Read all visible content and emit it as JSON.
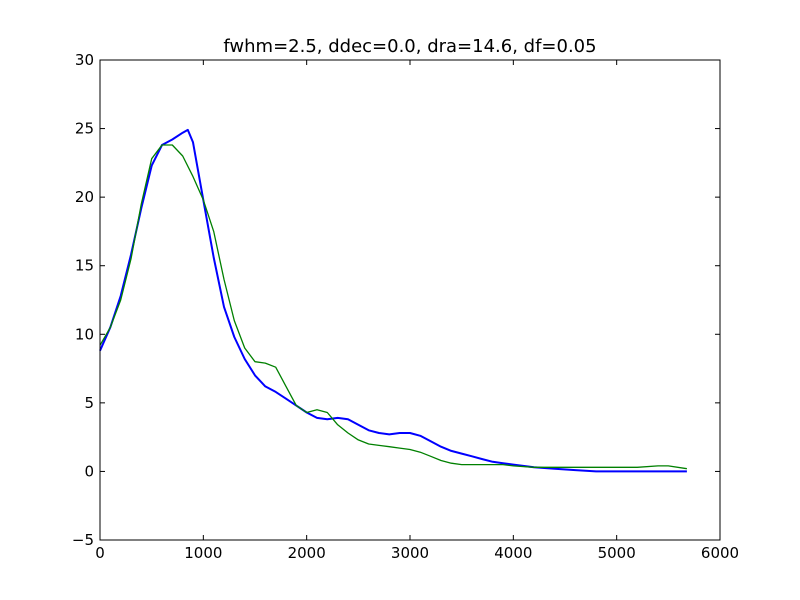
{
  "chart_data": {
    "type": "line",
    "title": "fwhm=2.5, ddec=0.0, dra=14.6, df=0.05",
    "xlabel": "",
    "ylabel": "",
    "xlim": [
      0,
      6000
    ],
    "ylim": [
      -5,
      30
    ],
    "xticks": [
      0,
      1000,
      2000,
      3000,
      4000,
      5000,
      6000
    ],
    "yticks": [
      -5,
      0,
      5,
      10,
      15,
      20,
      25,
      30
    ],
    "grid": false,
    "colors": {
      "data": "#0000ff",
      "model": "#008000"
    },
    "series": [
      {
        "x": [
          0,
          100,
          200,
          300,
          400,
          500,
          600,
          700,
          800,
          850,
          900,
          1000,
          1100,
          1200,
          1300,
          1400,
          1500,
          1600,
          1700,
          1800,
          1900,
          2000,
          2100,
          2200,
          2300,
          2400,
          2500,
          2600,
          2700,
          2800,
          2900,
          3000,
          3100,
          3200,
          3300,
          3400,
          3500,
          3600,
          3700,
          3800,
          3900,
          4000,
          4200,
          4400,
          4600,
          4800,
          5000,
          5200,
          5400,
          5680
        ],
        "y": [
          8.8,
          10.5,
          12.8,
          15.8,
          19.2,
          22.3,
          23.8,
          24.2,
          24.7,
          24.9,
          24.0,
          19.8,
          15.6,
          12.0,
          9.8,
          8.2,
          7.0,
          6.2,
          5.8,
          5.3,
          4.8,
          4.3,
          3.9,
          3.8,
          3.9,
          3.8,
          3.4,
          3.0,
          2.8,
          2.7,
          2.8,
          2.8,
          2.6,
          2.2,
          1.8,
          1.5,
          1.3,
          1.1,
          0.9,
          0.7,
          0.6,
          0.5,
          0.3,
          0.2,
          0.1,
          0.0,
          0.0,
          0.0,
          0.0,
          0.0
        ]
      },
      {
        "x": [
          0,
          100,
          200,
          300,
          400,
          500,
          600,
          700,
          800,
          900,
          1000,
          1100,
          1200,
          1300,
          1400,
          1500,
          1600,
          1700,
          1800,
          1900,
          2000,
          2100,
          2200,
          2300,
          2400,
          2500,
          2600,
          2700,
          2800,
          2900,
          3000,
          3100,
          3200,
          3300,
          3400,
          3500,
          3600,
          3700,
          3800,
          3900,
          4000,
          4200,
          4400,
          4600,
          4800,
          5000,
          5200,
          5400,
          5500,
          5680
        ],
        "y": [
          9.2,
          10.5,
          12.5,
          15.5,
          19.5,
          22.8,
          23.8,
          23.8,
          23.0,
          21.5,
          19.8,
          17.5,
          14.0,
          11.0,
          9.0,
          8.0,
          7.9,
          7.6,
          6.2,
          4.8,
          4.3,
          4.5,
          4.3,
          3.4,
          2.8,
          2.3,
          2.0,
          1.9,
          1.8,
          1.7,
          1.6,
          1.4,
          1.1,
          0.8,
          0.6,
          0.5,
          0.5,
          0.5,
          0.5,
          0.5,
          0.4,
          0.3,
          0.3,
          0.3,
          0.3,
          0.3,
          0.3,
          0.4,
          0.4,
          0.2
        ]
      }
    ]
  }
}
